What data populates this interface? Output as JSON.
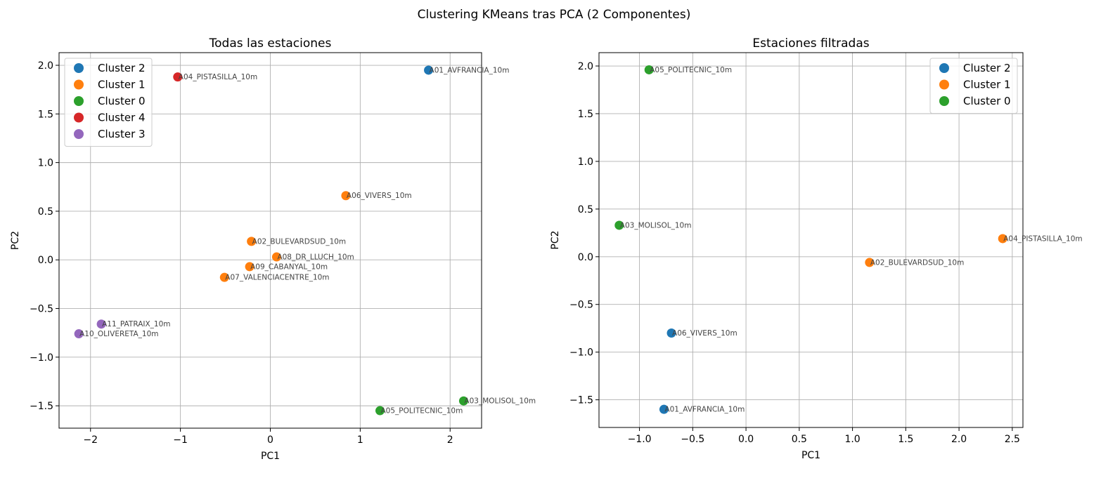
{
  "figure": {
    "suptitle": "Clustering KMeans tras PCA (2 Componentes)"
  },
  "colors": {
    "Cluster 0": "#2ca02c",
    "Cluster 1": "#ff7f0e",
    "Cluster 2": "#1f77b4",
    "Cluster 3": "#9467bd",
    "Cluster 4": "#d62728",
    "grid": "#b0b0b0",
    "point_label": "#444444"
  },
  "chart_data": [
    {
      "type": "scatter",
      "title": "Todas las estaciones",
      "xlabel": "PC1",
      "ylabel": "PC2",
      "xlim": [
        -2.35,
        2.35
      ],
      "ylim": [
        -1.73,
        2.13
      ],
      "xticks": [
        -2,
        -1,
        0,
        1,
        2
      ],
      "xtick_labels": [
        "−2",
        "−1",
        "0",
        "1",
        "2"
      ],
      "yticks": [
        -1.5,
        -1.0,
        -0.5,
        0.0,
        0.5,
        1.0,
        1.5,
        2.0
      ],
      "ytick_labels": [
        "−1.5",
        "−1.0",
        "−0.5",
        "0.0",
        "0.5",
        "1.0",
        "1.5",
        "2.0"
      ],
      "grid": true,
      "legend_position": "top-left",
      "legend": [
        "Cluster 2",
        "Cluster 1",
        "Cluster 0",
        "Cluster 4",
        "Cluster 3"
      ],
      "points": [
        {
          "label": "A01_AVFRANCIA_10m",
          "cluster": "Cluster 2",
          "x": 1.76,
          "y": 1.95
        },
        {
          "label": "A04_PISTASILLA_10m",
          "cluster": "Cluster 4",
          "x": -1.03,
          "y": 1.88
        },
        {
          "label": "A06_VIVERS_10m",
          "cluster": "Cluster 1",
          "x": 0.84,
          "y": 0.66
        },
        {
          "label": "A02_BULEVARDSUD_10m",
          "cluster": "Cluster 1",
          "x": -0.21,
          "y": 0.19
        },
        {
          "label": "A08_DR_LLUCH_10m",
          "cluster": "Cluster 1",
          "x": 0.07,
          "y": 0.03
        },
        {
          "label": "A09_CABANYAL_10m",
          "cluster": "Cluster 1",
          "x": -0.23,
          "y": -0.07
        },
        {
          "label": "A07_VALENCIACENTRE_10m",
          "cluster": "Cluster 1",
          "x": -0.51,
          "y": -0.18
        },
        {
          "label": "A11_PATRAIX_10m",
          "cluster": "Cluster 3",
          "x": -1.88,
          "y": -0.66
        },
        {
          "label": "A10_OLIVERETA_10m",
          "cluster": "Cluster 3",
          "x": -2.13,
          "y": -0.76
        },
        {
          "label": "A03_MOLISOL_10m",
          "cluster": "Cluster 0",
          "x": 2.15,
          "y": -1.45
        },
        {
          "label": "A05_POLITECNIC_10m",
          "cluster": "Cluster 0",
          "x": 1.22,
          "y": -1.55
        }
      ]
    },
    {
      "type": "scatter",
      "title": "Estaciones filtradas",
      "xlabel": "PC1",
      "ylabel": "PC2",
      "xlim": [
        -1.38,
        2.6
      ],
      "ylim": [
        -1.79,
        2.14
      ],
      "xticks": [
        -1.0,
        -0.5,
        0.0,
        0.5,
        1.0,
        1.5,
        2.0,
        2.5
      ],
      "xtick_labels": [
        "−1.0",
        "−0.5",
        "0.0",
        "0.5",
        "1.0",
        "1.5",
        "2.0",
        "2.5"
      ],
      "yticks": [
        -1.5,
        -1.0,
        -0.5,
        0.0,
        0.5,
        1.0,
        1.5,
        2.0
      ],
      "ytick_labels": [
        "−1.5",
        "−1.0",
        "−0.5",
        "0.0",
        "0.5",
        "1.0",
        "1.5",
        "2.0"
      ],
      "grid": true,
      "legend_position": "top-right",
      "legend": [
        "Cluster 2",
        "Cluster 1",
        "Cluster 0"
      ],
      "points": [
        {
          "label": "A05_POLITECNIC_10m",
          "cluster": "Cluster 0",
          "x": -0.91,
          "y": 1.96
        },
        {
          "label": "A03_MOLISOL_10m",
          "cluster": "Cluster 0",
          "x": -1.19,
          "y": 0.33
        },
        {
          "label": "A04_PISTASILLA_10m",
          "cluster": "Cluster 1",
          "x": 2.41,
          "y": 0.19
        },
        {
          "label": "A02_BULEVARDSUD_10m",
          "cluster": "Cluster 1",
          "x": 1.16,
          "y": -0.06
        },
        {
          "label": "A06_VIVERS_10m",
          "cluster": "Cluster 2",
          "x": -0.7,
          "y": -0.8
        },
        {
          "label": "A01_AVFRANCIA_10m",
          "cluster": "Cluster 2",
          "x": -0.77,
          "y": -1.6
        }
      ]
    }
  ]
}
